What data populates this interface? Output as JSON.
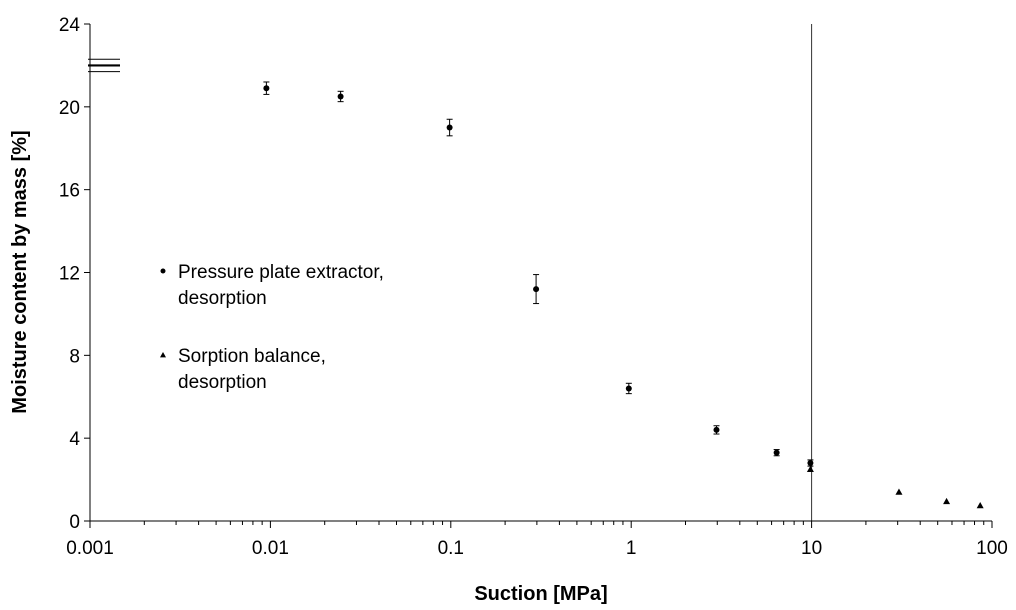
{
  "chart_data": {
    "type": "scatter",
    "title": "",
    "xlabel": "Suction [MPa]",
    "ylabel": "Moisture content by mass [%]",
    "x_scale": "log",
    "xlim": [
      0.001,
      100
    ],
    "ylim": [
      0,
      24
    ],
    "x_ticks": [
      {
        "value": 0.001,
        "label": "0.001"
      },
      {
        "value": 0.01,
        "label": "0.01"
      },
      {
        "value": 0.1,
        "label": "0.1"
      },
      {
        "value": 1,
        "label": "1"
      },
      {
        "value": 10,
        "label": "10"
      },
      {
        "value": 100,
        "label": "100"
      }
    ],
    "y_ticks": [
      {
        "value": 0,
        "label": "0"
      },
      {
        "value": 4,
        "label": "4"
      },
      {
        "value": 8,
        "label": "8"
      },
      {
        "value": 12,
        "label": "12"
      },
      {
        "value": 16,
        "label": "16"
      },
      {
        "value": 20,
        "label": "20"
      },
      {
        "value": 24,
        "label": "24"
      }
    ],
    "grid": false,
    "legend_position": "middle-left",
    "vertical_reference_line_x": 10,
    "reference_lines_y": [
      22.3,
      22.0,
      21.7
    ],
    "series": [
      {
        "name": "Pressure plate extractor, desorption",
        "legend_lines": [
          "Pressure plate extractor,",
          "desorption"
        ],
        "marker": "circle",
        "points": [
          {
            "x": 0.0095,
            "y": 20.9,
            "err": 0.3
          },
          {
            "x": 0.0245,
            "y": 20.5,
            "err": 0.25
          },
          {
            "x": 0.0985,
            "y": 19.0,
            "err": 0.4
          },
          {
            "x": 0.297,
            "y": 11.2,
            "err": 0.7
          },
          {
            "x": 0.97,
            "y": 6.4,
            "err": 0.25
          },
          {
            "x": 2.97,
            "y": 4.4,
            "err": 0.2
          },
          {
            "x": 6.4,
            "y": 3.3,
            "err": 0.15
          },
          {
            "x": 9.85,
            "y": 2.8,
            "err": 0.15
          }
        ]
      },
      {
        "name": "Sorption balance, desorption",
        "legend_lines": [
          "Sorption balance,",
          "desorption"
        ],
        "marker": "triangle",
        "points": [
          {
            "x": 9.85,
            "y": 2.5
          },
          {
            "x": 30.5,
            "y": 1.4
          },
          {
            "x": 56.0,
            "y": 0.95
          },
          {
            "x": 86.0,
            "y": 0.75
          }
        ]
      }
    ]
  }
}
